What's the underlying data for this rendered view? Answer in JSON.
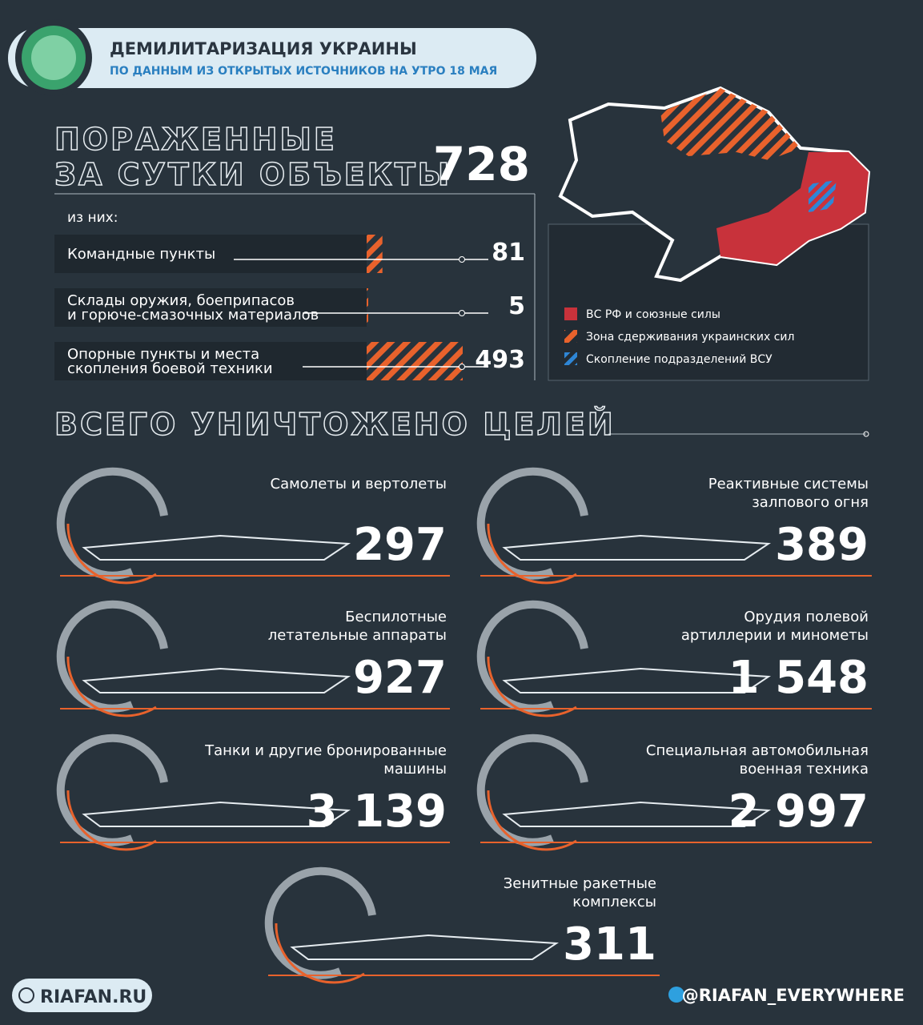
{
  "header": {
    "title": "ДЕМИЛИТАРИЗАЦИЯ УКРАИНЫ",
    "subtitle": "ПО ДАННЫМ ИЗ ОТКРЫТЫХ ИСТОЧНИКОВ НА УТРО 18 МАЯ"
  },
  "daily": {
    "heading_lines": [
      "ПОРАЖЕННЫЕ",
      "ЗА СУТКИ ОБЪЕКТЫ"
    ],
    "total": 728,
    "of_which": "из них:",
    "items": [
      {
        "label_lines": [
          "Командные пункты"
        ],
        "value": 81
      },
      {
        "label_lines": [
          "Склады оружия, боеприпасов",
          "и горюче-смазочных материалов"
        ],
        "value": 5
      },
      {
        "label_lines": [
          "Опорные пункты и места",
          "скопления боевой техники"
        ],
        "value": 493
      }
    ]
  },
  "map": {
    "legend": [
      {
        "label": "ВС РФ и союзные силы",
        "color": "#c8323b"
      },
      {
        "label": "Зона сдерживания украинских сил",
        "color": "#e8622c"
      },
      {
        "label": "Скопление подразделений ВСУ",
        "color": "#2e86d6"
      }
    ]
  },
  "totals": {
    "heading": "ВСЕГО УНИЧТОЖЕНО ЦЕЛЕЙ",
    "items": [
      {
        "label_lines": [
          "Самолеты и вертолеты"
        ],
        "value": "297"
      },
      {
        "label_lines": [
          "Реактивные системы",
          "залпового огня"
        ],
        "value": "389"
      },
      {
        "label_lines": [
          "Беспилотные",
          "летательные аппараты"
        ],
        "value": "927"
      },
      {
        "label_lines": [
          "Орудия полевой",
          "артиллерии и минометы"
        ],
        "value": "1 548"
      },
      {
        "label_lines": [
          "Танки и другие бронированные",
          "машины"
        ],
        "value": "3 139"
      },
      {
        "label_lines": [
          "Специальная автомобильная",
          "военная техника"
        ],
        "value": "2 997"
      },
      {
        "label_lines": [
          "Зенитные ракетные",
          "комплексы"
        ],
        "value": "311"
      }
    ]
  },
  "footer": {
    "site": "RIAFAN.RU",
    "telegram": "@RIAFAN_EVERYWHERE"
  }
}
